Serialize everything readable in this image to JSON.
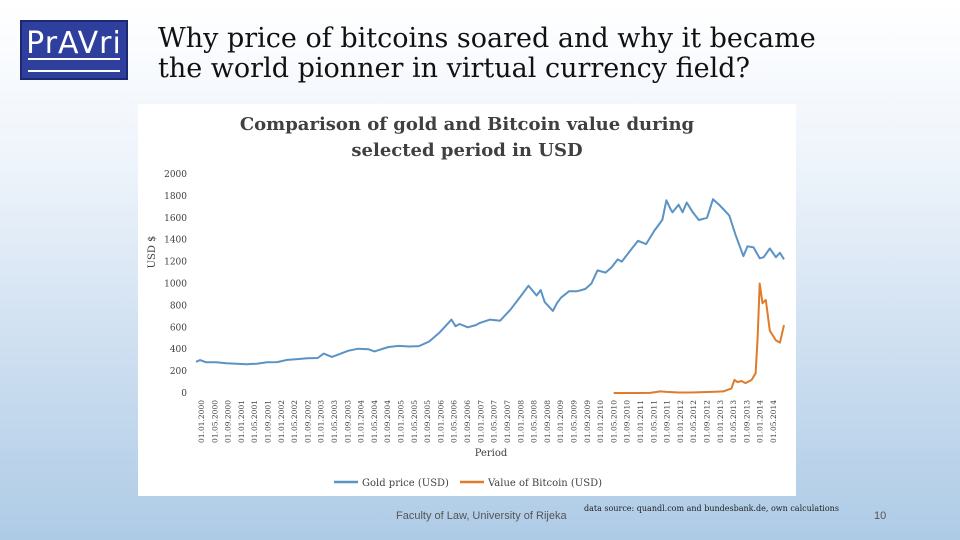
{
  "logo": {
    "text": "PrAVri"
  },
  "slide": {
    "title_line1": "Why price of bitcoins soared and why it became",
    "title_line2": "the world pionner in virtual currency field?",
    "footer_left": "Faculty of Law, University of Rijeka",
    "footer_source": "data source: quandl.com and bundesbank.de, own calculations",
    "page_number": "10"
  },
  "chart_data": {
    "type": "line",
    "title_line1": "Comparison of gold and Bitcoin value during",
    "title_line2": "selected period in USD",
    "xlabel": "Period",
    "ylabel": "USD $",
    "ylim": [
      0,
      2000
    ],
    "yticks": [
      0,
      200,
      400,
      600,
      800,
      1000,
      1200,
      1400,
      1600,
      1800,
      2000
    ],
    "xticks": [
      "01.01.2000",
      "01.05.2000",
      "01.09.2000",
      "01.01.2001",
      "01.05.2001",
      "01.09.2001",
      "01.01.2002",
      "01.05.2002",
      "01.09.2002",
      "01.01.2003",
      "01.05.2003",
      "01.09.2003",
      "01.01.2004",
      "01.05.2004",
      "01.09.2004",
      "01.01.2005",
      "01.05.2005",
      "01.09.2005",
      "01.01.2006",
      "01.05.2006",
      "01.09.2006",
      "01.01.2007",
      "01.05.2007",
      "01.09.2007",
      "01.01.2008",
      "01.05.2008",
      "01.09.2008",
      "01.01.2009",
      "01.05.2009",
      "01.09.2009",
      "01.01.2010",
      "01.05.2010",
      "01.09.2010",
      "01.01.2011",
      "01.05.2011",
      "01.09.2011",
      "01.01.2012",
      "01.05.2012",
      "01.09.2012",
      "01.01.2013",
      "01.05.2013",
      "01.09.2013",
      "01.01.2014",
      "01.05.2014"
    ],
    "x_range": [
      2000.0,
      2014.5
    ],
    "series": [
      {
        "name": "Gold price (USD)",
        "color": "#5b93c5",
        "points": [
          [
            2000.0,
            285
          ],
          [
            2000.1,
            300
          ],
          [
            2000.25,
            280
          ],
          [
            2000.5,
            280
          ],
          [
            2000.75,
            272
          ],
          [
            2001.0,
            268
          ],
          [
            2001.25,
            262
          ],
          [
            2001.5,
            268
          ],
          [
            2001.75,
            280
          ],
          [
            2002.0,
            282
          ],
          [
            2002.25,
            302
          ],
          [
            2002.5,
            310
          ],
          [
            2002.75,
            318
          ],
          [
            2003.0,
            320
          ],
          [
            2003.15,
            360
          ],
          [
            2003.35,
            330
          ],
          [
            2003.5,
            350
          ],
          [
            2003.75,
            385
          ],
          [
            2004.0,
            405
          ],
          [
            2004.25,
            400
          ],
          [
            2004.4,
            380
          ],
          [
            2004.75,
            420
          ],
          [
            2005.0,
            430
          ],
          [
            2005.25,
            425
          ],
          [
            2005.5,
            428
          ],
          [
            2005.75,
            470
          ],
          [
            2006.0,
            550
          ],
          [
            2006.3,
            670
          ],
          [
            2006.4,
            610
          ],
          [
            2006.5,
            630
          ],
          [
            2006.7,
            600
          ],
          [
            2006.9,
            620
          ],
          [
            2007.0,
            640
          ],
          [
            2007.25,
            670
          ],
          [
            2007.5,
            660
          ],
          [
            2007.75,
            760
          ],
          [
            2008.0,
            880
          ],
          [
            2008.2,
            980
          ],
          [
            2008.4,
            890
          ],
          [
            2008.5,
            940
          ],
          [
            2008.6,
            830
          ],
          [
            2008.8,
            750
          ],
          [
            2008.9,
            820
          ],
          [
            2009.0,
            870
          ],
          [
            2009.2,
            930
          ],
          [
            2009.4,
            930
          ],
          [
            2009.6,
            950
          ],
          [
            2009.75,
            1000
          ],
          [
            2009.9,
            1120
          ],
          [
            2010.1,
            1100
          ],
          [
            2010.25,
            1150
          ],
          [
            2010.4,
            1220
          ],
          [
            2010.5,
            1200
          ],
          [
            2010.75,
            1320
          ],
          [
            2010.9,
            1390
          ],
          [
            2011.1,
            1360
          ],
          [
            2011.3,
            1480
          ],
          [
            2011.5,
            1580
          ],
          [
            2011.6,
            1760
          ],
          [
            2011.7,
            1680
          ],
          [
            2011.75,
            1650
          ],
          [
            2011.9,
            1720
          ],
          [
            2012.0,
            1650
          ],
          [
            2012.1,
            1740
          ],
          [
            2012.25,
            1650
          ],
          [
            2012.4,
            1580
          ],
          [
            2012.6,
            1600
          ],
          [
            2012.75,
            1770
          ],
          [
            2012.9,
            1720
          ],
          [
            2013.0,
            1680
          ],
          [
            2013.15,
            1620
          ],
          [
            2013.3,
            1450
          ],
          [
            2013.5,
            1250
          ],
          [
            2013.6,
            1340
          ],
          [
            2013.75,
            1330
          ],
          [
            2013.9,
            1230
          ],
          [
            2014.0,
            1240
          ],
          [
            2014.15,
            1320
          ],
          [
            2014.3,
            1240
          ],
          [
            2014.4,
            1280
          ],
          [
            2014.5,
            1220
          ]
        ]
      },
      {
        "name": "Value of Bitcoin (USD)",
        "color": "#e07b2a",
        "points": [
          [
            2010.3,
            0
          ],
          [
            2010.6,
            0
          ],
          [
            2010.9,
            0
          ],
          [
            2011.2,
            1
          ],
          [
            2011.45,
            15
          ],
          [
            2011.6,
            10
          ],
          [
            2011.9,
            5
          ],
          [
            2012.2,
            5
          ],
          [
            2012.5,
            8
          ],
          [
            2012.8,
            12
          ],
          [
            2013.0,
            15
          ],
          [
            2013.2,
            40
          ],
          [
            2013.28,
            120
          ],
          [
            2013.35,
            100
          ],
          [
            2013.45,
            110
          ],
          [
            2013.55,
            90
          ],
          [
            2013.7,
            120
          ],
          [
            2013.8,
            180
          ],
          [
            2013.85,
            500
          ],
          [
            2013.9,
            1000
          ],
          [
            2013.97,
            820
          ],
          [
            2014.05,
            850
          ],
          [
            2014.15,
            570
          ],
          [
            2014.3,
            480
          ],
          [
            2014.4,
            460
          ],
          [
            2014.5,
            620
          ]
        ]
      }
    ]
  }
}
